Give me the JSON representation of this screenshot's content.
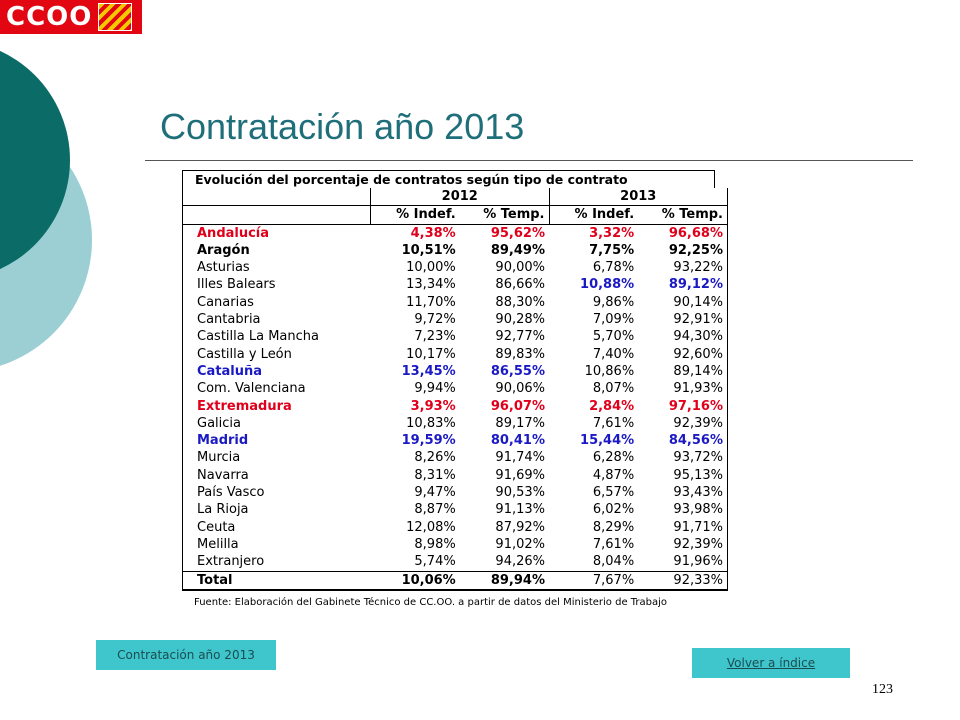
{
  "logo": {
    "text": "CCOO"
  },
  "slide_title": "Contratación año 2013",
  "table": {
    "title": "Evolución del porcentaje de contratos según tipo de contrato",
    "years": [
      "2012",
      "2013"
    ],
    "subheaders": [
      "% Indef.",
      "% Temp.",
      "% Indef.",
      "% Temp."
    ],
    "rows": [
      {
        "name": "Andalucía",
        "v": [
          "4,38%",
          "95,62%",
          "3,32%",
          "96,68%"
        ],
        "style": "red"
      },
      {
        "name": "Aragón",
        "v": [
          "10,51%",
          "89,49%",
          "7,75%",
          "92,25%"
        ],
        "style": "bold"
      },
      {
        "name": "Asturias",
        "v": [
          "10,00%",
          "90,00%",
          "6,78%",
          "93,22%"
        ],
        "style": ""
      },
      {
        "name": "Illes Balears",
        "v": [
          "13,34%",
          "86,66%",
          "10,88%",
          "89,12%"
        ],
        "style": "",
        "style13": "blue"
      },
      {
        "name": "Canarias",
        "v": [
          "11,70%",
          "88,30%",
          "9,86%",
          "90,14%"
        ],
        "style": ""
      },
      {
        "name": "Cantabria",
        "v": [
          "9,72%",
          "90,28%",
          "7,09%",
          "92,91%"
        ],
        "style": ""
      },
      {
        "name": "Castilla La Mancha",
        "v": [
          "7,23%",
          "92,77%",
          "5,70%",
          "94,30%"
        ],
        "style": ""
      },
      {
        "name": "Castilla y León",
        "v": [
          "10,17%",
          "89,83%",
          "7,40%",
          "92,60%"
        ],
        "style": ""
      },
      {
        "name": "Cataluña",
        "v": [
          "13,45%",
          "86,55%",
          "10,86%",
          "89,14%"
        ],
        "style": "blue",
        "style13": "plain"
      },
      {
        "name": "Com. Valenciana",
        "v": [
          "9,94%",
          "90,06%",
          "8,07%",
          "91,93%"
        ],
        "style": ""
      },
      {
        "name": "Extremadura",
        "v": [
          "3,93%",
          "96,07%",
          "2,84%",
          "97,16%"
        ],
        "style": "red"
      },
      {
        "name": "Galicia",
        "v": [
          "10,83%",
          "89,17%",
          "7,61%",
          "92,39%"
        ],
        "style": ""
      },
      {
        "name": "Madrid",
        "v": [
          "19,59%",
          "80,41%",
          "15,44%",
          "84,56%"
        ],
        "style": "blue"
      },
      {
        "name": "Murcia",
        "v": [
          "8,26%",
          "91,74%",
          "6,28%",
          "93,72%"
        ],
        "style": ""
      },
      {
        "name": "Navarra",
        "v": [
          "8,31%",
          "91,69%",
          "4,87%",
          "95,13%"
        ],
        "style": ""
      },
      {
        "name": "País Vasco",
        "v": [
          "9,47%",
          "90,53%",
          "6,57%",
          "93,43%"
        ],
        "style": ""
      },
      {
        "name": "La Rioja",
        "v": [
          "8,87%",
          "91,13%",
          "6,02%",
          "93,98%"
        ],
        "style": ""
      },
      {
        "name": "Ceuta",
        "v": [
          "12,08%",
          "87,92%",
          "8,29%",
          "91,71%"
        ],
        "style": ""
      },
      {
        "name": "Melilla",
        "v": [
          "8,98%",
          "91,02%",
          "7,61%",
          "92,39%"
        ],
        "style": ""
      },
      {
        "name": "Extranjero",
        "v": [
          "5,74%",
          "94,26%",
          "8,04%",
          "91,96%"
        ],
        "style": ""
      },
      {
        "name": "Total",
        "v": [
          "10,06%",
          "89,94%",
          "7,67%",
          "92,33%"
        ],
        "style": "bold",
        "style13": "plain",
        "total": true
      }
    ],
    "source": "Fuente: Elaboración del Gabinete Técnico de CC.OO. a partir de datos del Ministerio de Trabajo"
  },
  "footer": {
    "left_button": "Contratación año 2013",
    "right_link": "Volver a índice",
    "page_number": "123"
  },
  "colors": {
    "title": "#1f6f7a",
    "button_bg": "#3fc6cc",
    "red_highlight": "#e0001b",
    "blue_highlight": "#1b19c4",
    "deco_dark": "#0b6b67",
    "deco_light": "#9ccfd4"
  }
}
